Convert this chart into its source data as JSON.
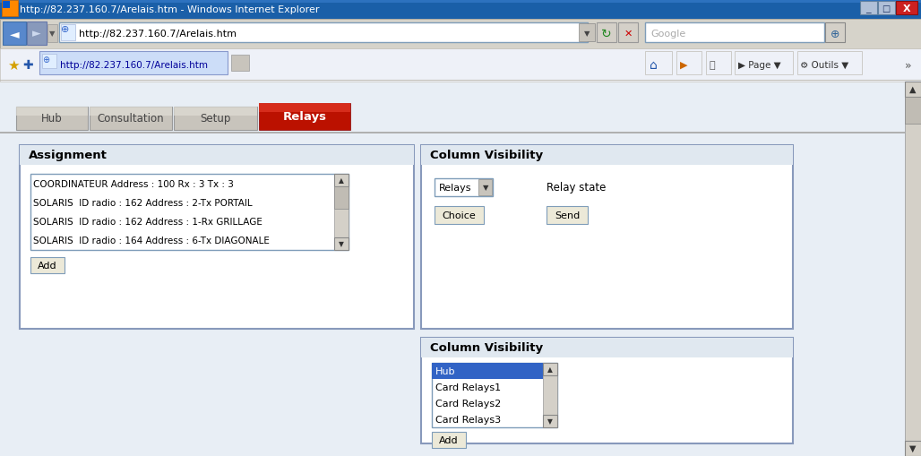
{
  "title_bar": "http://82.237.160.7/Arelais.htm - Windows Internet Explorer",
  "url": "http://82.237.160.7/Arelais.htm",
  "tab_text": "http://82.237.160.7/Arelais.htm",
  "active_tab_color": "#cc2200",
  "assignment_title": "Assignment",
  "assignment_items": [
    "COORDINATEUR Address : 100 Rx : 3 Tx : 3",
    "SOLARIS  ID radio : 162 Address : 2-Tx PORTAIL",
    "SOLARIS  ID radio : 162 Address : 1-Rx GRILLAGE",
    "SOLARIS  ID radio : 164 Address : 6-Tx DIAGONALE"
  ],
  "add_button": "Add",
  "col_vis_title": "Column Visibility",
  "relays_dropdown": "Relays",
  "relay_state_label": "Relay state",
  "choice_button": "Choice",
  "send_button": "Send",
  "col_vis2_title": "Column Visibility",
  "col_vis2_items": [
    "Hub",
    "Card Relays1",
    "Card Relays2",
    "Card Relays3"
  ],
  "add_button2": "Add",
  "bg_color": "#dce6f0",
  "content_bg": "#e8eef5",
  "panel_bg": "#ffffff",
  "title_bar_bg": "#1a5fa8",
  "addr_bar_bg": "#d6d3ca",
  "favbar_bg": "#eef1f8",
  "border_dark": "#404040",
  "border_color": "#7f9db9",
  "button_bg": "#ece9d8",
  "listbox_selected_bg": "#3163c5",
  "scrollbar_bg": "#d4d0c8",
  "tab_inactive_bg": "#c8c4bc",
  "tab_inactive_gradient_top": "#e0ddd5",
  "tab_active_bg": "#cc2200",
  "google_box_color": "#ffffff"
}
